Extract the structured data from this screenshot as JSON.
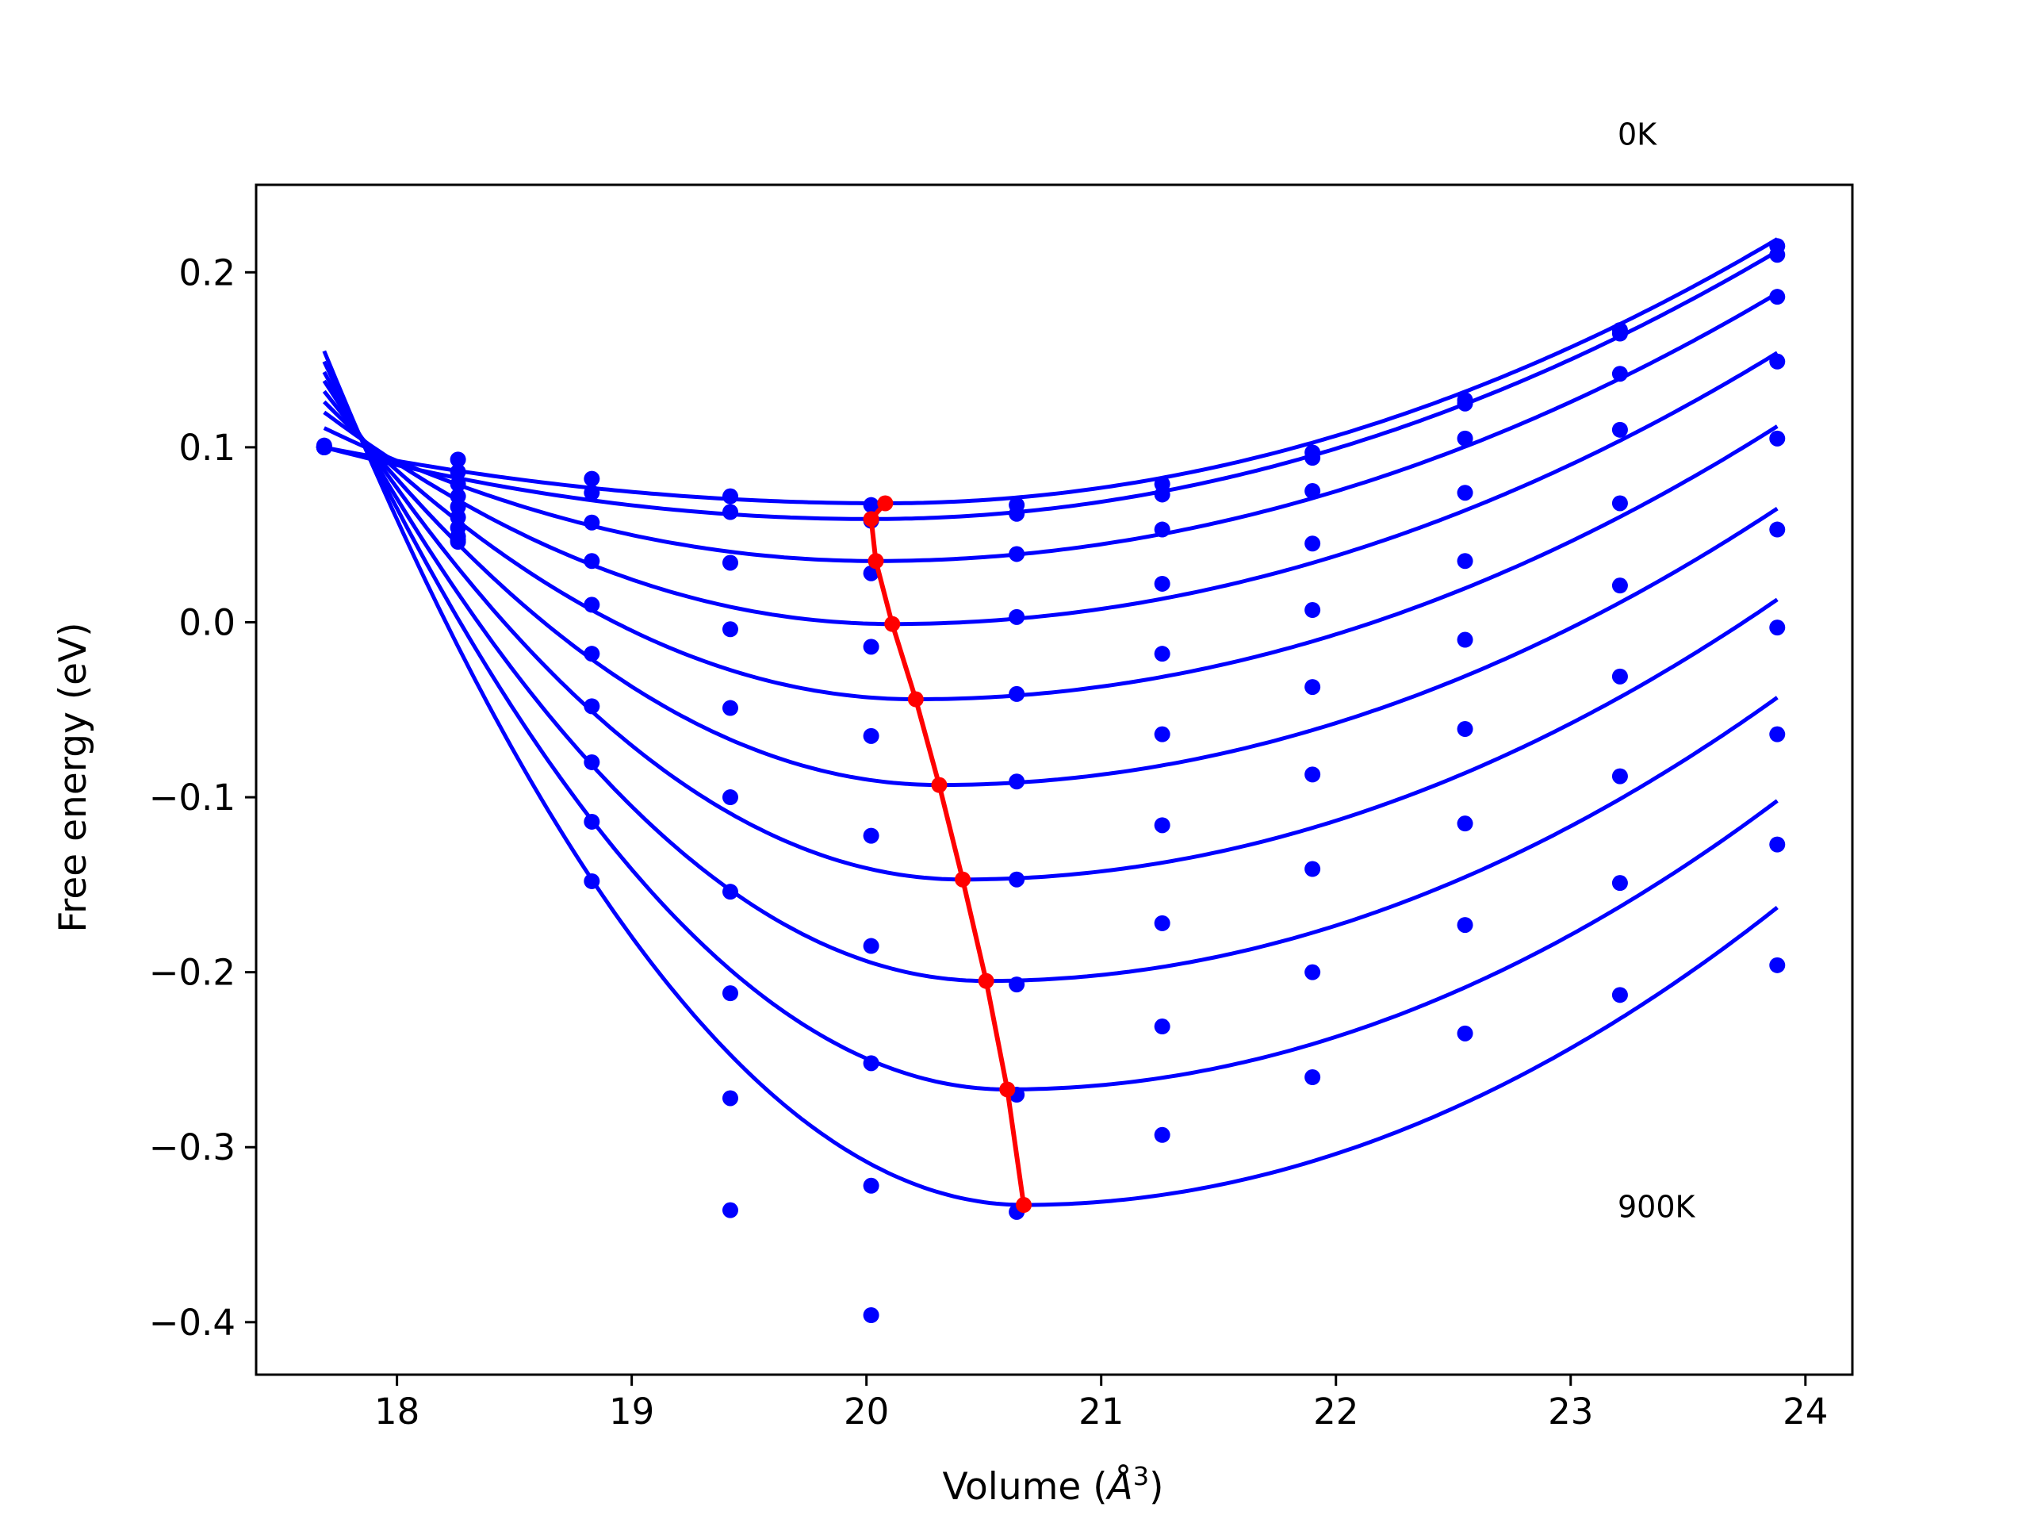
{
  "chart_data": {
    "type": "scatter",
    "xlabel": "Volume (Å³)",
    "xlabel_main": "Volume (",
    "xlabel_italic": "Å",
    "xlabel_sup": "3",
    "xlabel_close": ")",
    "ylabel": "Free energy (eV)",
    "xlim": [
      17.4,
      24.2
    ],
    "ylim": [
      -0.43,
      0.25
    ],
    "xticks": [
      18,
      19,
      20,
      21,
      22,
      23,
      24
    ],
    "xtick_labels": [
      "18",
      "19",
      "20",
      "21",
      "22",
      "23",
      "24"
    ],
    "yticks": [
      0.2,
      0.1,
      0.0,
      -0.1,
      -0.2,
      -0.3,
      -0.4
    ],
    "ytick_labels": [
      "0.2",
      "0.1",
      "0.0",
      "−0.1",
      "−0.2",
      "−0.3",
      "−0.4"
    ],
    "annotations": [
      {
        "text": "0K",
        "x": 23.2,
        "y": 0.273
      },
      {
        "text": "900K",
        "x": 23.2,
        "y": -0.34
      }
    ],
    "grid": false,
    "legend": "none",
    "colors": {
      "fit_curves": "#0000ff",
      "data_points": "#0000ff",
      "minimum_path": "#ff0000"
    },
    "volumes": [
      17.69,
      18.26,
      18.83,
      19.42,
      20.02,
      20.64,
      21.26,
      21.9,
      22.55,
      23.21,
      23.88
    ],
    "series": [
      {
        "min_volume": 20.08,
        "min_energy": 0.068,
        "data": [
          0.1,
          0.093,
          0.082,
          0.072,
          0.067,
          0.067,
          0.079,
          0.097,
          0.127,
          0.167,
          0.215
        ]
      },
      {
        "min_volume": 20.02,
        "min_energy": 0.059,
        "data": [
          0.101,
          0.086,
          0.074,
          0.063,
          0.058,
          0.062,
          0.073,
          0.094,
          0.125,
          0.165,
          0.21
        ]
      },
      {
        "min_volume": 20.04,
        "min_energy": 0.035,
        "data": [
          0.1,
          0.079,
          0.057,
          0.034,
          0.028,
          0.039,
          0.053,
          0.075,
          0.105,
          0.142,
          0.186
        ]
      },
      {
        "min_volume": 20.11,
        "min_energy": -0.001,
        "data": [
          0.1,
          0.072,
          0.035,
          -0.004,
          -0.014,
          0.003,
          0.022,
          0.045,
          0.074,
          0.11,
          0.149
        ]
      },
      {
        "min_volume": 20.21,
        "min_energy": -0.044,
        "data": [
          0.1,
          0.066,
          0.01,
          -0.049,
          -0.065,
          -0.041,
          -0.018,
          0.007,
          0.035,
          0.068,
          0.105
        ]
      },
      {
        "min_volume": 20.31,
        "min_energy": -0.093,
        "data": [
          0.1,
          0.06,
          -0.018,
          -0.1,
          -0.122,
          -0.091,
          -0.064,
          -0.037,
          -0.01,
          0.021,
          0.053
        ]
      },
      {
        "min_volume": 20.41,
        "min_energy": -0.147,
        "data": [
          0.1,
          0.054,
          -0.048,
          -0.154,
          -0.185,
          -0.147,
          -0.116,
          -0.087,
          -0.061,
          -0.031,
          -0.003
        ]
      },
      {
        "min_volume": 20.51,
        "min_energy": -0.205,
        "data": [
          0.1,
          0.049,
          -0.08,
          -0.212,
          -0.252,
          -0.207,
          -0.172,
          -0.141,
          -0.115,
          -0.088,
          -0.064
        ]
      },
      {
        "min_volume": 20.6,
        "min_energy": -0.267,
        "data": [
          0.1,
          0.047,
          -0.114,
          -0.272,
          -0.322,
          -0.27,
          -0.231,
          -0.2,
          -0.173,
          -0.149,
          -0.127
        ]
      },
      {
        "min_volume": 20.67,
        "min_energy": -0.333,
        "data": [
          0.1,
          0.046,
          -0.148,
          -0.336,
          -0.396,
          -0.337,
          -0.293,
          -0.26,
          -0.235,
          -0.213,
          -0.196
        ]
      }
    ],
    "fit_curves": {
      "start_volume": 17.69,
      "end_volume": 23.88,
      "start_energy": [
        0.1,
        0.1,
        0.111,
        0.12,
        0.126,
        0.132,
        0.138,
        0.143,
        0.149,
        0.155
      ],
      "end_energy": [
        0.219,
        0.212,
        0.188,
        0.154,
        0.112,
        0.065,
        0.013,
        -0.043,
        -0.102,
        -0.163
      ]
    }
  }
}
